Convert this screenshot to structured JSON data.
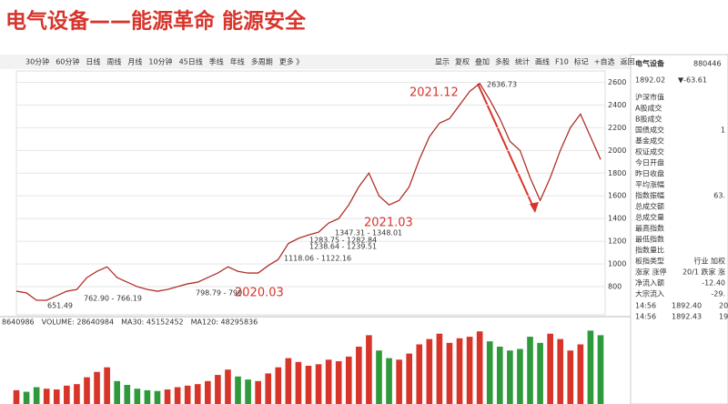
{
  "header": {
    "title": "电气设备——能源革命 能源安全"
  },
  "toolbar": {
    "left": [
      "30分钟",
      "60分钟",
      "日线",
      "周线",
      "月线",
      "10分钟",
      "45日线",
      "季线",
      "年线",
      "多周期",
      "更多 》"
    ],
    "right": [
      "显示",
      "复权",
      "叠加",
      "多股",
      "统计",
      "画线",
      "F10",
      "标记",
      "+自选",
      "返回"
    ]
  },
  "panel": {
    "name": "电气设备",
    "code": "880446",
    "price": "1892.02",
    "change": "▼-63.61",
    "rows": [
      {
        "label": "沪深市值"
      },
      {
        "label": "A股成交"
      },
      {
        "label": "B股成交"
      },
      {
        "label": "国债成交",
        "value": "1"
      },
      {
        "label": "基金成交"
      },
      {
        "label": "权证成交"
      },
      {
        "label": "今日开盘"
      },
      {
        "label": "昨日收盘"
      },
      {
        "label": "平均涨幅"
      },
      {
        "label": "指数振幅",
        "value": "63."
      },
      {
        "label": "总成交额"
      },
      {
        "label": "总成交量"
      },
      {
        "label": "最高指数"
      },
      {
        "label": "最低指数"
      },
      {
        "label": "指数量比"
      },
      {
        "label": "板指类型",
        "value": "行业 加权"
      },
      {
        "label": "涨家 涨停",
        "value": "20/1 跌家 涨"
      },
      {
        "label": "净流入额",
        "value": "-12.40"
      },
      {
        "label": "大宗流入",
        "value": "-29."
      }
    ],
    "ticks": [
      [
        "14:56",
        "1892.40",
        "20"
      ],
      [
        "14:56",
        "1892.43",
        "19"
      ]
    ]
  },
  "chart_data": [
    {
      "type": "line",
      "color": "#b0302a",
      "categories": [
        null,
        null,
        null,
        null,
        null,
        null,
        null,
        null,
        null,
        null,
        null,
        null,
        null,
        null,
        null,
        null,
        null,
        null,
        null,
        null,
        null,
        null,
        null,
        null,
        null,
        null,
        null,
        null,
        null,
        null,
        null,
        null,
        null,
        null,
        null,
        null,
        null,
        null,
        null,
        null,
        null,
        null,
        null,
        null,
        null,
        null,
        null,
        null,
        null,
        null,
        null,
        null,
        null,
        null,
        null,
        null,
        null,
        null,
        null
      ],
      "values": [
        760,
        745,
        680,
        680,
        720,
        760,
        775,
        880,
        935,
        975,
        880,
        840,
        800,
        775,
        760,
        775,
        800,
        825,
        840,
        880,
        920,
        975,
        935,
        920,
        920,
        985,
        1040,
        1180,
        1225,
        1255,
        1280,
        1360,
        1400,
        1520,
        1680,
        1800,
        1600,
        1520,
        1560,
        1680,
        1920,
        2120,
        2240,
        2280,
        2400,
        2520,
        2590,
        2445,
        2280,
        2080,
        2000,
        1760,
        1560,
        1760,
        2000,
        2200,
        2320,
        2120,
        1920
      ],
      "ylim": [
        560,
        2700
      ],
      "yticks": [
        800,
        1000,
        1200,
        1400,
        1600,
        1800,
        2000,
        2200,
        2400,
        2600
      ],
      "grid": true,
      "annotations": [
        "2021.12",
        "2636.73",
        "2021.03",
        "2020.03",
        "651.49",
        "762.90 - 766.19",
        "798.79 - 799.",
        "1347.31 - 1348.01",
        "1283.75 - 1282.84",
        "1238.64 - 1239.51",
        "1118.06 - 1122.16"
      ]
    },
    {
      "type": "bar",
      "up_color": "#d8352a",
      "down_color": "#2e9a3c",
      "header": [
        "8640986",
        "VOLUME: 28640984",
        "MA30: 45152452",
        "MA120: 48295836"
      ],
      "categories": [
        null,
        null,
        null,
        null,
        null,
        null,
        null,
        null,
        null,
        null,
        null,
        null,
        null,
        null,
        null,
        null,
        null,
        null,
        null,
        null,
        null,
        null,
        null,
        null,
        null,
        null,
        null,
        null,
        null,
        null,
        null,
        null,
        null,
        null,
        null,
        null,
        null,
        null,
        null,
        null,
        null,
        null,
        null,
        null,
        null,
        null,
        null,
        null,
        null,
        null,
        null,
        null,
        null,
        null,
        null,
        null,
        null,
        null,
        null
      ],
      "values": [
        18000000,
        16000000,
        22000000,
        20000000,
        19000000,
        24000000,
        26000000,
        35000000,
        42000000,
        48000000,
        30000000,
        25000000,
        20000000,
        18000000,
        17000000,
        19000000,
        22000000,
        24000000,
        26000000,
        30000000,
        38000000,
        45000000,
        36000000,
        32000000,
        30000000,
        40000000,
        48000000,
        60000000,
        55000000,
        50000000,
        52000000,
        58000000,
        56000000,
        62000000,
        75000000,
        90000000,
        70000000,
        60000000,
        58000000,
        66000000,
        78000000,
        85000000,
        92000000,
        80000000,
        86000000,
        88000000,
        95000000,
        82000000,
        75000000,
        70000000,
        72000000,
        88000000,
        80000000,
        92000000,
        85000000,
        70000000,
        78000000,
        96000000,
        90000000
      ],
      "ylim": [
        0,
        100000000
      ]
    }
  ]
}
